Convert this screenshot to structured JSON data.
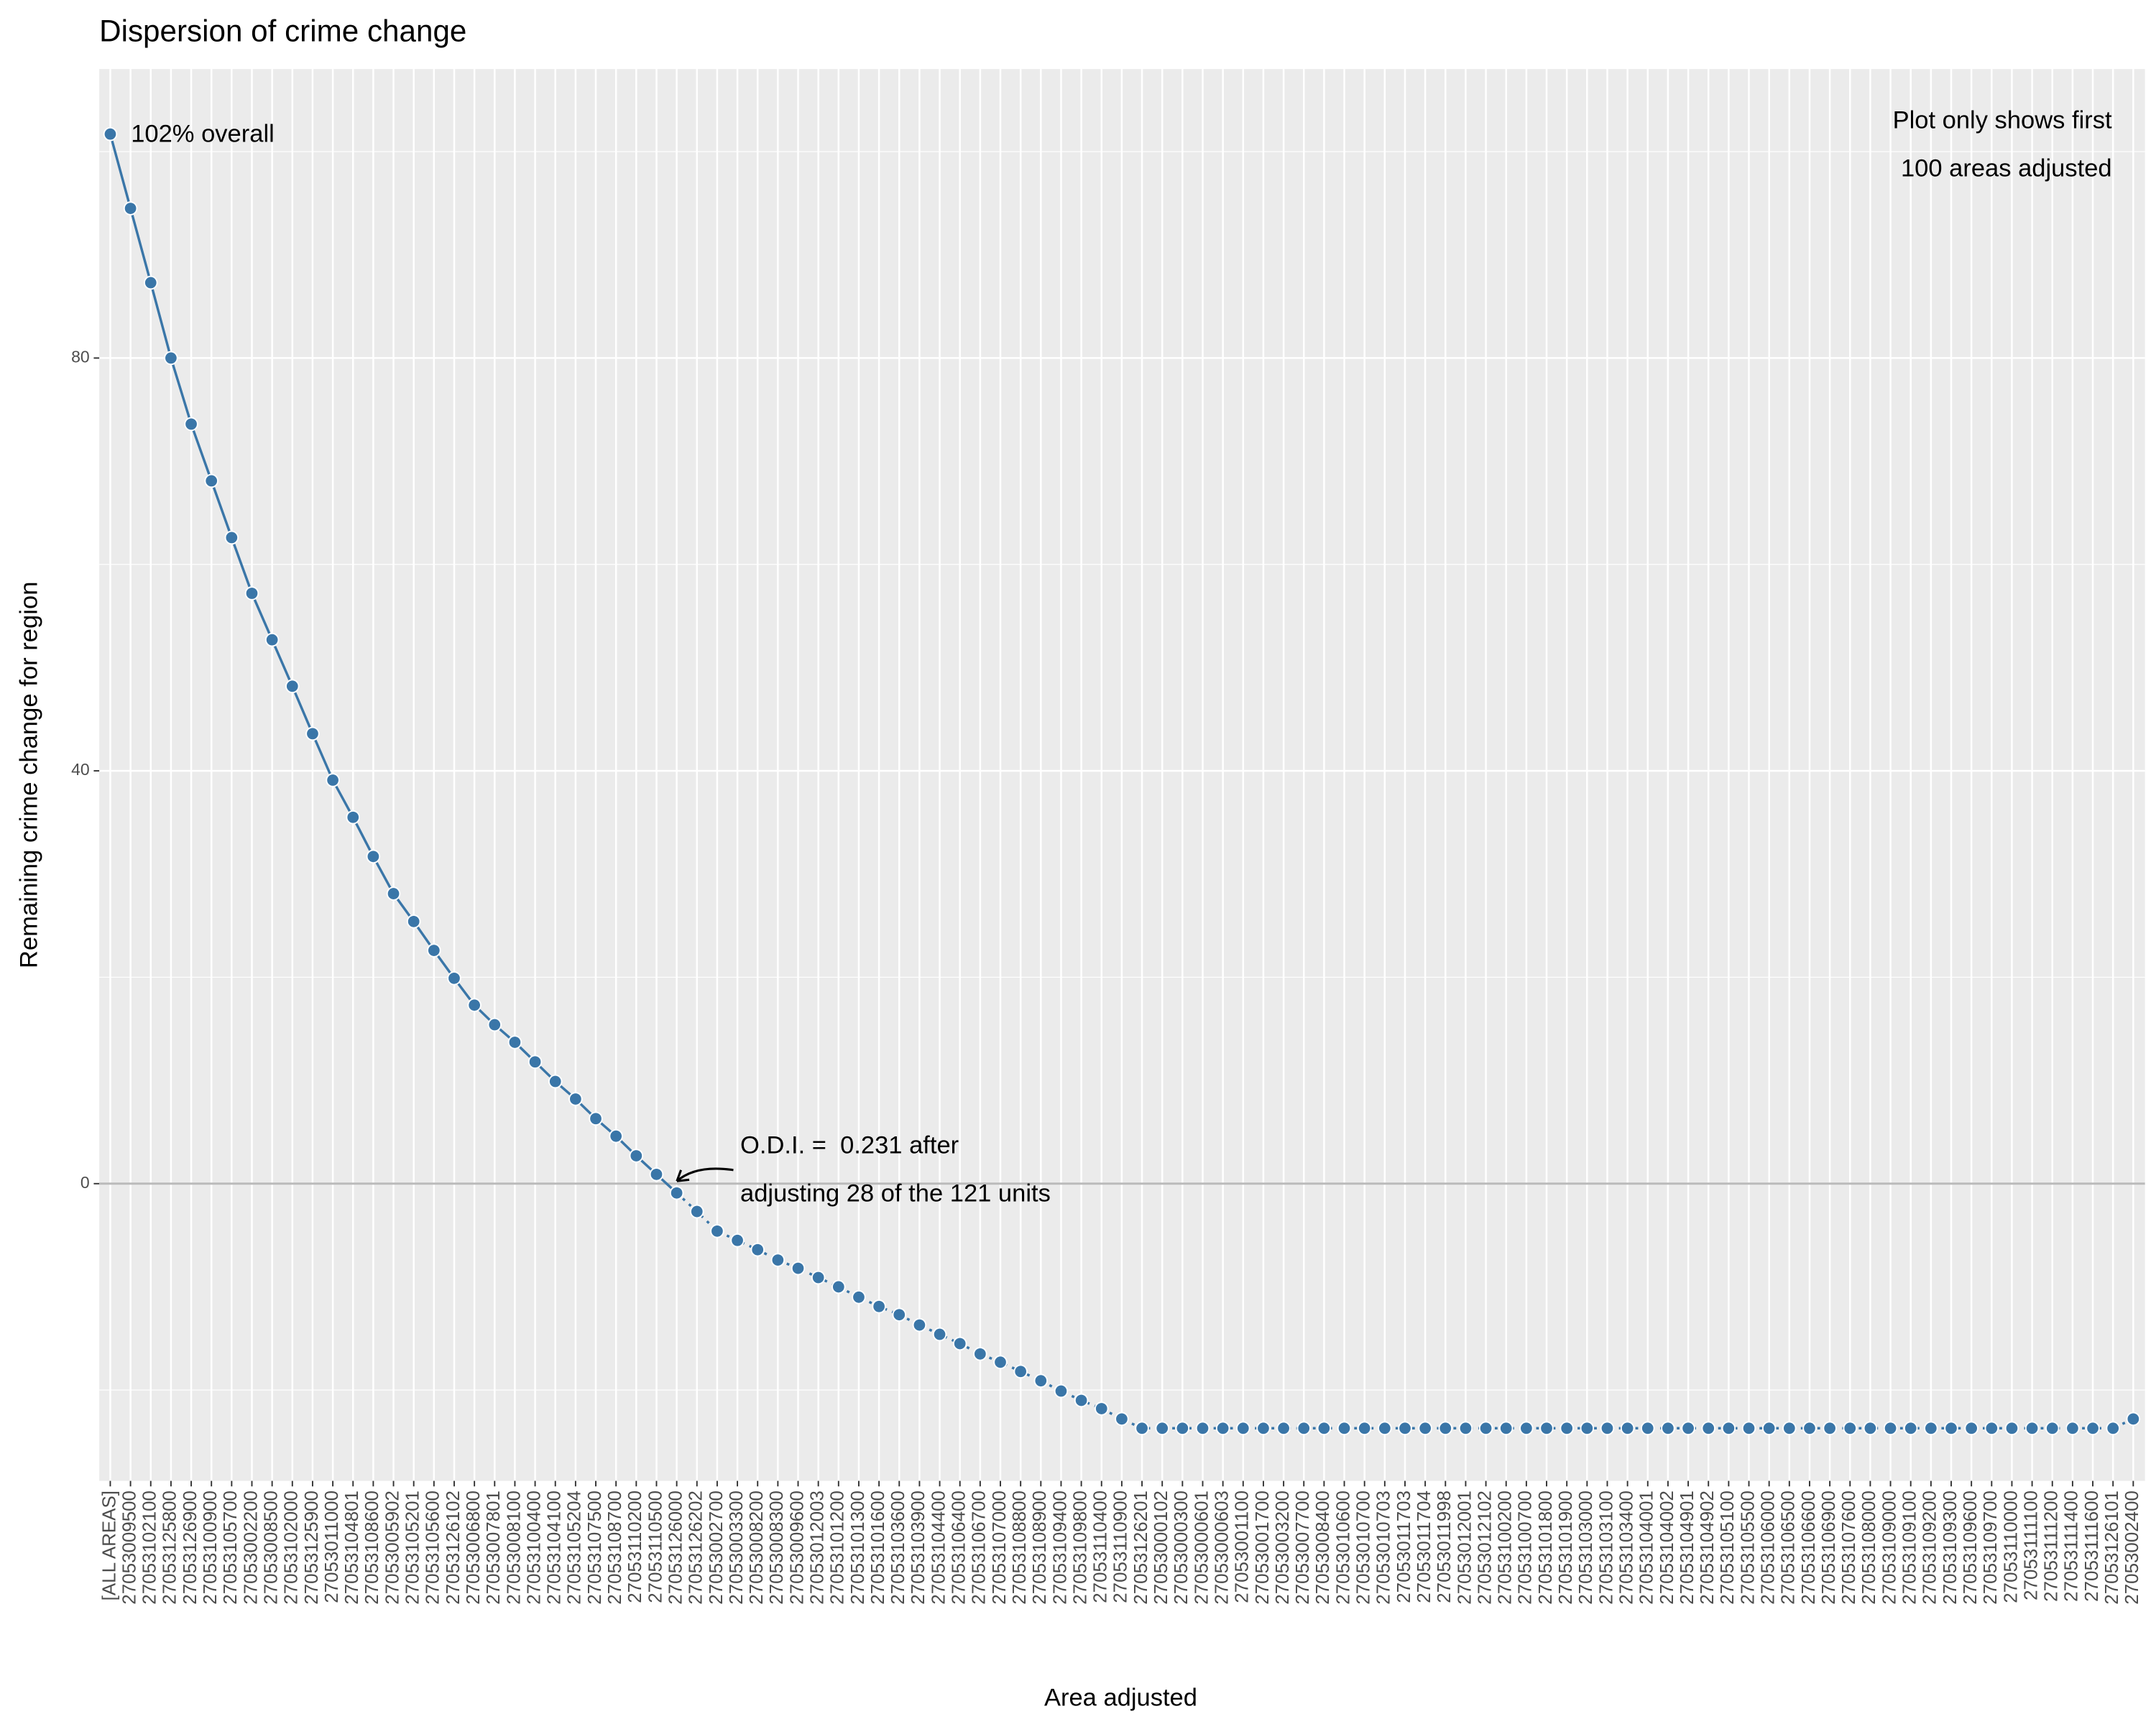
{
  "chart_data": {
    "type": "line",
    "title": "Dispersion of crime change",
    "x_label": "Area adjusted",
    "y_label": "Remaining crime change for region",
    "annotations": [
      "102% overall",
      "Plot only shows first",
      "100 areas adjusted",
      "O.D.I. =  0.231 after",
      "adjusting 28 of the 121 units"
    ],
    "categories": [
      "[ALL AREAS]",
      "27053009500",
      "27053102100",
      "27053125800",
      "27053126900",
      "27053100900",
      "27053105700",
      "27053002200",
      "27053008500",
      "27053102000",
      "27053125900",
      "27053011000",
      "27053104801",
      "27053108600",
      "27053005902",
      "27053105201",
      "27053105600",
      "27053126102",
      "27053006800",
      "27053007801",
      "27053008100",
      "27053100400",
      "27053104100",
      "27053105204",
      "27053107500",
      "27053108700",
      "27053110200",
      "27053110500",
      "27053126000",
      "27053126202",
      "27053002700",
      "27053003300",
      "27053008200",
      "27053008300",
      "27053009600",
      "27053012003",
      "27053101200",
      "27053101300",
      "27053101600",
      "27053103600",
      "27053103900",
      "27053104400",
      "27053106400",
      "27053106700",
      "27053107000",
      "27053108800",
      "27053108900",
      "27053109400",
      "27053109800",
      "27053110400",
      "27053110900",
      "27053126201",
      "27053000102",
      "27053000300",
      "27053000601",
      "27053000603",
      "27053001100",
      "27053001700",
      "27053003200",
      "27053007700",
      "27053008400",
      "27053010600",
      "27053010700",
      "27053010703",
      "27053011703",
      "27053011704",
      "27053011998",
      "27053012001",
      "27053012102",
      "27053100200",
      "27053100700",
      "27053101800",
      "27053101900",
      "27053103000",
      "27053103100",
      "27053103400",
      "27053104001",
      "27053104002",
      "27053104901",
      "27053104902",
      "27053105100",
      "27053105500",
      "27053106000",
      "27053106500",
      "27053106600",
      "27053106900",
      "27053107600",
      "27053108000",
      "27053109000",
      "27053109100",
      "27053109200",
      "27053109300",
      "27053109600",
      "27053109700",
      "27053110000",
      "27053111100",
      "27053111200",
      "27053111400",
      "27053111600",
      "27053126101",
      "27053002400"
    ],
    "series": [
      {
        "color": "#3a76a8",
        "values": [
          101.7,
          94.5,
          87.3,
          80,
          73.6,
          68.1,
          62.6,
          57.2,
          52.7,
          48.2,
          43.6,
          39.1,
          35.5,
          31.7,
          28.1,
          25.4,
          22.6,
          19.9,
          17.3,
          15.4,
          13.7,
          11.8,
          9.9,
          8.2,
          6.3,
          4.6,
          2.7,
          0.9,
          -0.9,
          -2.7,
          -4.6,
          -5.5,
          -6.4,
          -7.4,
          -8.2,
          -9.1,
          -10.0,
          -11.0,
          -11.9,
          -12.7,
          -13.7,
          -14.6,
          -15.5,
          -16.5,
          -17.3,
          -18.2,
          -19.1,
          -20.1,
          -21.0,
          -21.8,
          -22.8,
          -23.7,
          -23.7,
          -23.7,
          -23.7,
          -23.7,
          -23.7,
          -23.7,
          -23.7,
          -23.7,
          -23.7,
          -23.7,
          -23.7,
          -23.7,
          -23.7,
          -23.7,
          -23.7,
          -23.7,
          -23.7,
          -23.7,
          -23.7,
          -23.7,
          -23.7,
          -23.7,
          -23.7,
          -23.7,
          -23.7,
          -23.7,
          -23.7,
          -23.7,
          -23.7,
          -23.7,
          -23.7,
          -23.7,
          -23.7,
          -23.7,
          -23.7,
          -23.7,
          -23.7,
          -23.7,
          -23.7,
          -23.7,
          -23.7,
          -23.7,
          -23.7,
          -23.7,
          -23.7,
          -23.7,
          -23.7,
          -23.7,
          -22.8
        ]
      }
    ],
    "dash_from_index": 28,
    "ylim": [
      -28.8,
      108
    ],
    "yticks": [
      0,
      40,
      80
    ],
    "grid": true,
    "zero_line": true
  }
}
